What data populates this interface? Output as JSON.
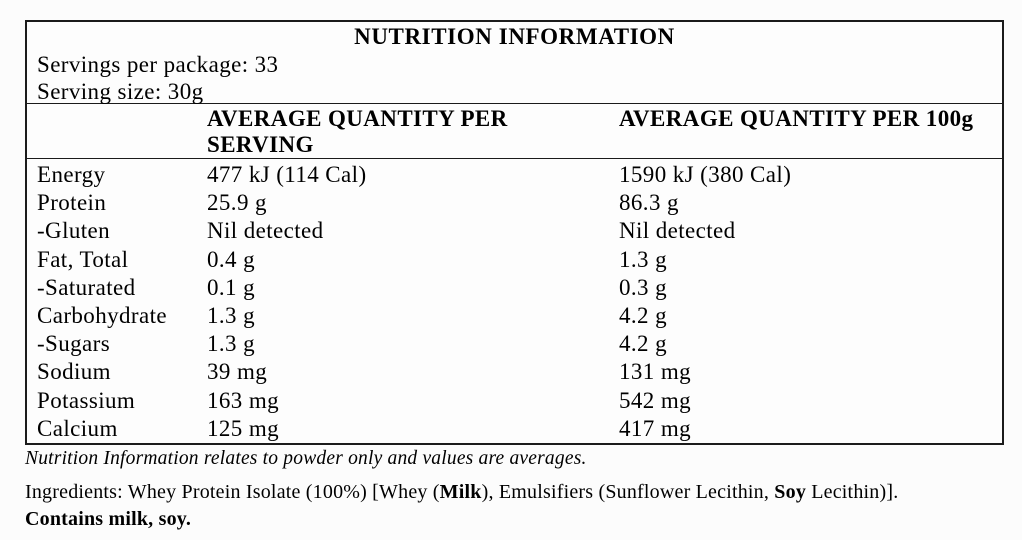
{
  "table": {
    "title": "NUTRITION INFORMATION",
    "servings_per_package": "Servings per package: 33",
    "serving_size": "Serving size: 30g",
    "col_per_serving": "AVERAGE QUANTITY PER SERVING",
    "col_per_100g": "AVERAGE QUANTITY PER 100g",
    "rows": [
      {
        "nutrient": "Energy",
        "per_serving": "477 kJ (114 Cal)",
        "per_100g": "1590 kJ (380 Cal)"
      },
      {
        "nutrient": "Protein",
        "per_serving": "25.9 g",
        "per_100g": "86.3 g"
      },
      {
        "nutrient": "-Gluten",
        "per_serving": "Nil detected",
        "per_100g": "Nil detected"
      },
      {
        "nutrient": "Fat, Total",
        "per_serving": "0.4 g",
        "per_100g": "1.3 g"
      },
      {
        "nutrient": "-Saturated",
        "per_serving": "0.1 g",
        "per_100g": "0.3 g"
      },
      {
        "nutrient": "Carbohydrate",
        "per_serving": "1.3 g",
        "per_100g": "4.2 g"
      },
      {
        "nutrient": "-Sugars",
        "per_serving": "1.3 g",
        "per_100g": "4.2 g"
      },
      {
        "nutrient": "Sodium",
        "per_serving": "39 mg",
        "per_100g": "131 mg"
      },
      {
        "nutrient": "Potassium",
        "per_serving": "163 mg",
        "per_100g": "542 mg"
      },
      {
        "nutrient": "Calcium",
        "per_serving": "125 mg",
        "per_100g": "417 mg"
      }
    ]
  },
  "footnote": "Nutrition Information relates to powder only and values are averages.",
  "ingredients": {
    "segments": [
      {
        "text": "Ingredients: Whey Protein Isolate (100%) [Whey (",
        "bold": false
      },
      {
        "text": "Milk",
        "bold": true
      },
      {
        "text": "), Emulsifiers (Sunflower Lecithin, ",
        "bold": false
      },
      {
        "text": "Soy",
        "bold": true
      },
      {
        "text": " Lecithin)].",
        "bold": false
      }
    ],
    "contains": "Contains milk, soy."
  },
  "colors": {
    "background": "#fcfcfc",
    "border": "#1b1b1b",
    "text": "#000000"
  }
}
